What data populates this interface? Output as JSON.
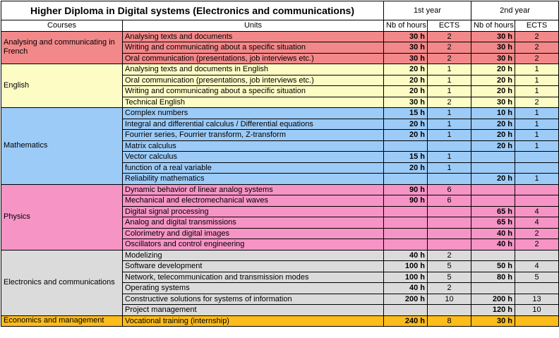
{
  "header": {
    "title": "Higher Diploma in Digital systems (Electronics and communications)",
    "year1": "1st year",
    "year2": "2nd year",
    "col_courses": "Courses",
    "col_units": "Units",
    "col_hours1": "Nb of hours",
    "col_ects1": "ECTS",
    "col_hours2": "Nb of hours",
    "col_ects2": "ECTS"
  },
  "groups": [
    {
      "course": "Analysing and communicating in French",
      "color": "#f3888a",
      "rows": [
        {
          "unit": "Analysing texts and documents",
          "h1": "30 h",
          "e1": "2",
          "h2": "30 h",
          "e2": "2"
        },
        {
          "unit": "Writing and communicating about a specific situation",
          "h1": "30 h",
          "e1": "2",
          "h2": "30 h",
          "e2": "2"
        },
        {
          "unit": "Oral communication (presentations, job interviews etc.)",
          "h1": "30 h",
          "e1": "2",
          "h2": "30 h",
          "e2": "2"
        }
      ]
    },
    {
      "course": "English",
      "color": "#fdfcc5",
      "rows": [
        {
          "unit": "Analysing texts and documents in English",
          "h1": "20 h",
          "e1": "1",
          "h2": "20 h",
          "e2": "1"
        },
        {
          "unit": "Oral communication (presentations, job interviews etc.)",
          "h1": "20 h",
          "e1": "1",
          "h2": "20 h",
          "e2": "1"
        },
        {
          "unit": "Writing and communicating about a specific situation",
          "h1": "20 h",
          "e1": "1",
          "h2": "20 h",
          "e2": "1"
        },
        {
          "unit": "Technical English",
          "h1": "30 h",
          "e1": "2",
          "h2": "30 h",
          "e2": "2"
        }
      ]
    },
    {
      "course": "Mathematics",
      "color": "#9ccbf8",
      "rows": [
        {
          "unit": "Complex numbers",
          "h1": "15 h",
          "e1": "1",
          "h2": "10 h",
          "e2": "1"
        },
        {
          "unit": "Integral and differential calculus / Differential equations",
          "h1": "20 h",
          "e1": "1",
          "h2": "20 h",
          "e2": "1"
        },
        {
          "unit": "Fourrier series, Fourrier transform,  Z-transform",
          "h1": "20 h",
          "e1": "1",
          "h2": "20 h",
          "e2": "1"
        },
        {
          "unit": "Matrix calculus",
          "h1": "",
          "e1": "",
          "h2": "20 h",
          "e2": "1"
        },
        {
          "unit": "Vector calculus",
          "h1": "15 h",
          "e1": "1",
          "h2": "",
          "e2": ""
        },
        {
          "unit": "function of a real variable",
          "h1": "20 h",
          "e1": "1",
          "h2": "",
          "e2": ""
        },
        {
          "unit": "Reliability  mathematics",
          "h1": "",
          "e1": "",
          "h2": "20 h",
          "e2": "1"
        }
      ]
    },
    {
      "course": "Physics",
      "color": "#f794c6",
      "rows": [
        {
          "unit": "Dynamic behavior of linear analog systems",
          "h1": "90 h",
          "e1": "6",
          "h2": "",
          "e2": ""
        },
        {
          "unit": "Mechanical and electromechanical  waves",
          "h1": "90 h",
          "e1": "6",
          "h2": "",
          "e2": ""
        },
        {
          "unit": "Digital signal processing",
          "h1": "",
          "e1": "",
          "h2": "65 h",
          "e2": "4"
        },
        {
          "unit": "Analog and digital transmissions",
          "h1": "",
          "e1": "",
          "h2": "65 h",
          "e2": "4"
        },
        {
          "unit": "Colorimetry and digital images",
          "h1": "",
          "e1": "",
          "h2": "40 h",
          "e2": "2"
        },
        {
          "unit": "Oscillators and control engineering",
          "h1": "",
          "e1": "",
          "h2": "40 h",
          "e2": "2"
        }
      ]
    },
    {
      "course": "Electronics and communications",
      "color": "#dbdbdb",
      "rows": [
        {
          "unit": "Modelizing",
          "h1": "40 h",
          "e1": "2",
          "h2": "",
          "e2": ""
        },
        {
          "unit": "Software development",
          "h1": "100 h",
          "e1": "5",
          "h2": "50 h",
          "e2": "4"
        },
        {
          "unit": "Network, telecommunication  and transmission modes",
          "h1": "100 h",
          "e1": "5",
          "h2": "80 h",
          "e2": "5"
        },
        {
          "unit": "Operating systems",
          "h1": "40 h",
          "e1": "2",
          "h2": "",
          "e2": ""
        },
        {
          "unit": "Constructive solutions for systems of information",
          "h1": "200 h",
          "e1": "10",
          "h2": "200 h",
          "e2": "13"
        },
        {
          "unit": "Project management",
          "h1": "",
          "e1": "",
          "h2": "120 h",
          "e2": "10"
        }
      ]
    },
    {
      "course": "Economics and management",
      "color": "#fcbc1a",
      "rows": [
        {
          "unit": "Vocational training (internship)",
          "h1": "240 h",
          "e1": "8",
          "h2": "30 h",
          "e2": ""
        }
      ]
    }
  ]
}
